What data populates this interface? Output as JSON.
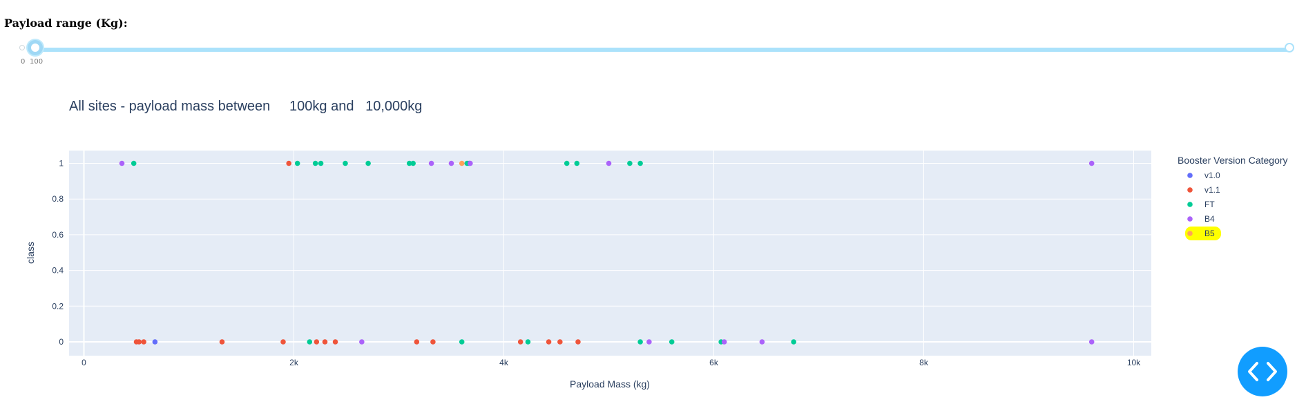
{
  "slider": {
    "label": "Payload range (Kg):",
    "tick_min": "0",
    "tick_value": "100",
    "range": [
      0,
      10000
    ],
    "selected": [
      100,
      10000
    ]
  },
  "chart_data": {
    "type": "scatter",
    "title": "All sites - payload mass between     100kg and   10,000kg",
    "xlabel": "Payload Mass (kg)",
    "ylabel": "class",
    "xlim": [
      -150,
      10150
    ],
    "ylim": [
      -0.07,
      1.07
    ],
    "x_ticks": [
      0,
      2000,
      4000,
      6000,
      8000,
      10000
    ],
    "x_tick_labels": [
      "0",
      "2k",
      "4k",
      "6k",
      "8k",
      "10k"
    ],
    "y_ticks": [
      0,
      0.2,
      0.4,
      0.6,
      0.8,
      1
    ],
    "y_tick_labels": [
      "0",
      "0.2",
      "0.4",
      "0.6",
      "0.8",
      "1"
    ],
    "grid": true,
    "legend_title": "Booster Version Category",
    "legend_position": "right",
    "series": [
      {
        "name": "v1.0",
        "color": "#636efa",
        "points": [
          [
            677,
            0
          ],
          [
            3670,
            1
          ]
        ]
      },
      {
        "name": "v1.1",
        "color": "#ef553b",
        "points": [
          [
            500,
            0
          ],
          [
            525,
            0
          ],
          [
            570,
            0
          ],
          [
            1316,
            0
          ],
          [
            1898,
            0
          ],
          [
            1952,
            1
          ],
          [
            2216,
            0
          ],
          [
            2296,
            0
          ],
          [
            2395,
            0
          ],
          [
            3170,
            0
          ],
          [
            3325,
            0
          ],
          [
            4159,
            0
          ],
          [
            4428,
            0
          ],
          [
            4535,
            0
          ],
          [
            4707,
            0
          ]
        ]
      },
      {
        "name": "FT",
        "color": "#00cc96",
        "points": [
          [
            475,
            1
          ],
          [
            2034,
            1
          ],
          [
            2150,
            0
          ],
          [
            2205,
            1
          ],
          [
            2257,
            1
          ],
          [
            2490,
            1
          ],
          [
            2708,
            1
          ],
          [
            3100,
            1
          ],
          [
            3136,
            1
          ],
          [
            3600,
            0
          ],
          [
            3650,
            1
          ],
          [
            4230,
            0
          ],
          [
            4600,
            1
          ],
          [
            4696,
            1
          ],
          [
            5200,
            1
          ],
          [
            5300,
            0
          ],
          [
            5300,
            1
          ],
          [
            5600,
            0
          ],
          [
            6070,
            0
          ],
          [
            6761,
            0
          ]
        ]
      },
      {
        "name": "B4",
        "color": "#ab63fa",
        "points": [
          [
            362,
            1
          ],
          [
            2647,
            0
          ],
          [
            3310,
            1
          ],
          [
            3500,
            1
          ],
          [
            3680,
            1
          ],
          [
            5000,
            1
          ],
          [
            5384,
            0
          ],
          [
            6100,
            0
          ],
          [
            6460,
            0
          ],
          [
            9600,
            0
          ],
          [
            9600,
            1
          ]
        ]
      },
      {
        "name": "B5",
        "color": "#ffa15a",
        "points": [
          [
            3600,
            1
          ]
        ]
      }
    ]
  },
  "fab": {
    "icon": "code-icon"
  }
}
